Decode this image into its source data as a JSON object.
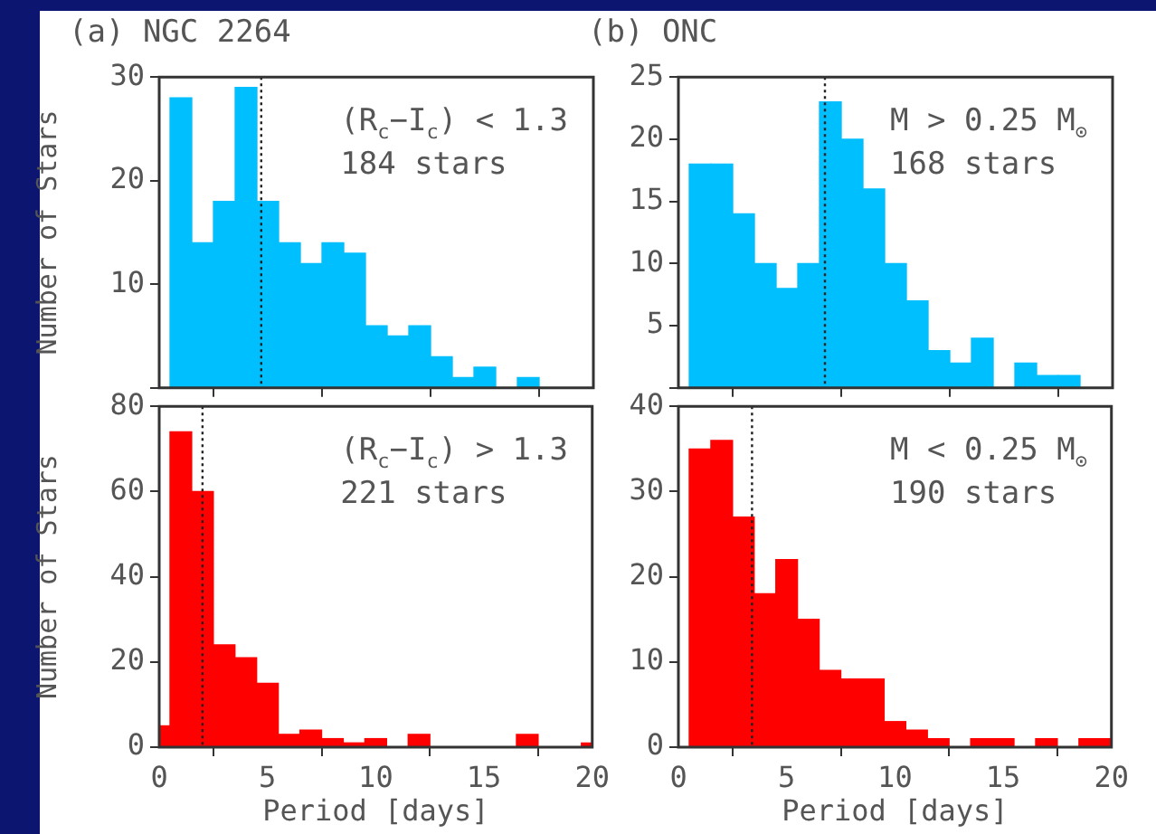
{
  "chart_data": [
    {
      "type": "histogram",
      "title": "(a)  NGC 2264",
      "ylabel": "Number of Stars",
      "annotations": [
        "(R$_{c}$−I$_{c}$) < 1.3",
        "184 stars"
      ],
      "bins": [
        0,
        0.5,
        1.5,
        2.5,
        3.5,
        4.5,
        5.5,
        6.5,
        7.5,
        8.5,
        9.5,
        10.5,
        11.5,
        12.5,
        13.5,
        14.5,
        15.5,
        16.5,
        17.5,
        18.5,
        19.5,
        20
      ],
      "values": [
        0,
        28,
        14,
        18,
        29,
        18,
        14,
        12,
        14,
        13,
        6,
        5,
        6,
        3,
        1,
        2,
        0,
        1,
        0,
        0,
        0
      ],
      "color": "#00bfff",
      "xlim": [
        0,
        20
      ],
      "xticks": [
        0,
        5,
        10,
        15,
        20
      ],
      "ylim": [
        0,
        30
      ],
      "yticks": [
        {
          "value": 0,
          "label": null
        },
        10,
        20,
        30
      ],
      "tick_labels": "y",
      "grid": false,
      "ref_lines": [
        {
          "axis": "x",
          "value": 4.7,
          "line_style": "dotted"
        }
      ]
    },
    {
      "type": "histogram",
      "title": "(b)  ONC",
      "annotations": [
        "M > 0.25 M$_{⊙}$",
        "168 stars"
      ],
      "bins": [
        0,
        0.5,
        1.5,
        2.5,
        3.5,
        4.5,
        5.5,
        6.5,
        7.5,
        8.5,
        9.5,
        10.5,
        11.5,
        12.5,
        13.5,
        14.5,
        15.5,
        16.5,
        17.5,
        18.5,
        19.5,
        20
      ],
      "values": [
        0,
        18,
        18,
        14,
        10,
        8,
        10,
        23,
        20,
        16,
        10,
        7,
        3,
        2,
        4,
        0,
        2,
        1,
        1,
        0,
        0
      ],
      "color": "#00bfff",
      "xlim": [
        0,
        20
      ],
      "xticks": [
        0,
        5,
        10,
        15,
        20
      ],
      "ylim": [
        0,
        25
      ],
      "yticks": [
        {
          "value": 0,
          "label": null
        },
        5,
        10,
        15,
        20,
        25
      ],
      "tick_labels": "y",
      "grid": false,
      "ref_lines": [
        {
          "axis": "x",
          "value": 6.75,
          "line_style": "dotted"
        }
      ]
    },
    {
      "type": "histogram",
      "xlabel": "Period [days]",
      "ylabel": "Number of Stars",
      "annotations": [
        "(R$_{c}$−I$_{c}$) > 1.3",
        "221 stars"
      ],
      "bins": [
        0,
        0.5,
        1.5,
        2.5,
        3.5,
        4.5,
        5.5,
        6.5,
        7.5,
        8.5,
        9.5,
        10.5,
        11.5,
        12.5,
        13.5,
        14.5,
        15.5,
        16.5,
        17.5,
        18.5,
        19.5,
        20
      ],
      "values": [
        5,
        74,
        60,
        24,
        21,
        15,
        3,
        4,
        2,
        1,
        2,
        0,
        3,
        0,
        0,
        0,
        0,
        3,
        0,
        0,
        1
      ],
      "color": "#ff0000",
      "xlim": [
        0,
        20
      ],
      "xticks": [
        0,
        5,
        10,
        15,
        20
      ],
      "ylim": [
        0,
        80
      ],
      "yticks": [
        0,
        20,
        40,
        60,
        80
      ],
      "grid": false,
      "ref_lines": [
        {
          "axis": "x",
          "value": 2.0,
          "line_style": "dotted"
        }
      ]
    },
    {
      "type": "histogram",
      "xlabel": "Period [days]",
      "annotations": [
        "M < 0.25 M$_{⊙}$",
        "190 stars"
      ],
      "bins": [
        0,
        0.5,
        1.5,
        2.5,
        3.5,
        4.5,
        5.5,
        6.5,
        7.5,
        8.5,
        9.5,
        10.5,
        11.5,
        12.5,
        13.5,
        14.5,
        15.5,
        16.5,
        17.5,
        18.5,
        19.5,
        20
      ],
      "values": [
        0,
        35,
        36,
        27,
        18,
        22,
        15,
        9,
        8,
        8,
        3,
        2,
        1,
        0,
        1,
        1,
        0,
        1,
        0,
        1,
        1
      ],
      "color": "#ff0000",
      "xlim": [
        0,
        20
      ],
      "xticks": [
        0,
        5,
        10,
        15,
        20
      ],
      "ylim": [
        0,
        40
      ],
      "yticks": [
        0,
        10,
        20,
        30,
        40
      ],
      "grid": false,
      "ref_lines": [
        {
          "axis": "x",
          "value": 3.4,
          "line_style": "dotted"
        }
      ]
    }
  ]
}
